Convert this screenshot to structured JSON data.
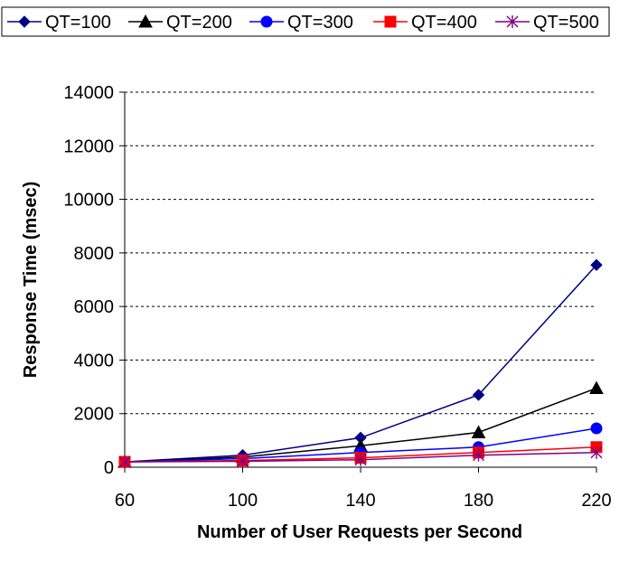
{
  "chart_data": {
    "type": "line",
    "title": "",
    "xlabel": "Number of User Requests per Second",
    "ylabel": "Response Time (msec)",
    "x": [
      60,
      100,
      140,
      180,
      220
    ],
    "xlim": [
      60,
      220
    ],
    "ylim": [
      0,
      14000
    ],
    "yticks": [
      0,
      2000,
      4000,
      6000,
      8000,
      10000,
      12000,
      14000
    ],
    "xticks": [
      60,
      100,
      140,
      180,
      220
    ],
    "grid": "horizontal dashed",
    "legend_position": "top",
    "series": [
      {
        "name": "QT=100",
        "color": "#000080",
        "marker": "diamond",
        "values": [
          200,
          450,
          1100,
          2700,
          7550
        ]
      },
      {
        "name": "QT=200",
        "color": "#000000",
        "marker": "triangle",
        "values": [
          200,
          380,
          800,
          1300,
          2950
        ]
      },
      {
        "name": "QT=300",
        "color": "#0000ff",
        "marker": "circle",
        "values": [
          200,
          320,
          550,
          750,
          1450
        ]
      },
      {
        "name": "QT=400",
        "color": "#ff0000",
        "marker": "square",
        "values": [
          200,
          250,
          350,
          550,
          750
        ]
      },
      {
        "name": "QT=500",
        "color": "#800080",
        "marker": "asterisk",
        "values": [
          200,
          220,
          280,
          450,
          550
        ]
      }
    ]
  }
}
